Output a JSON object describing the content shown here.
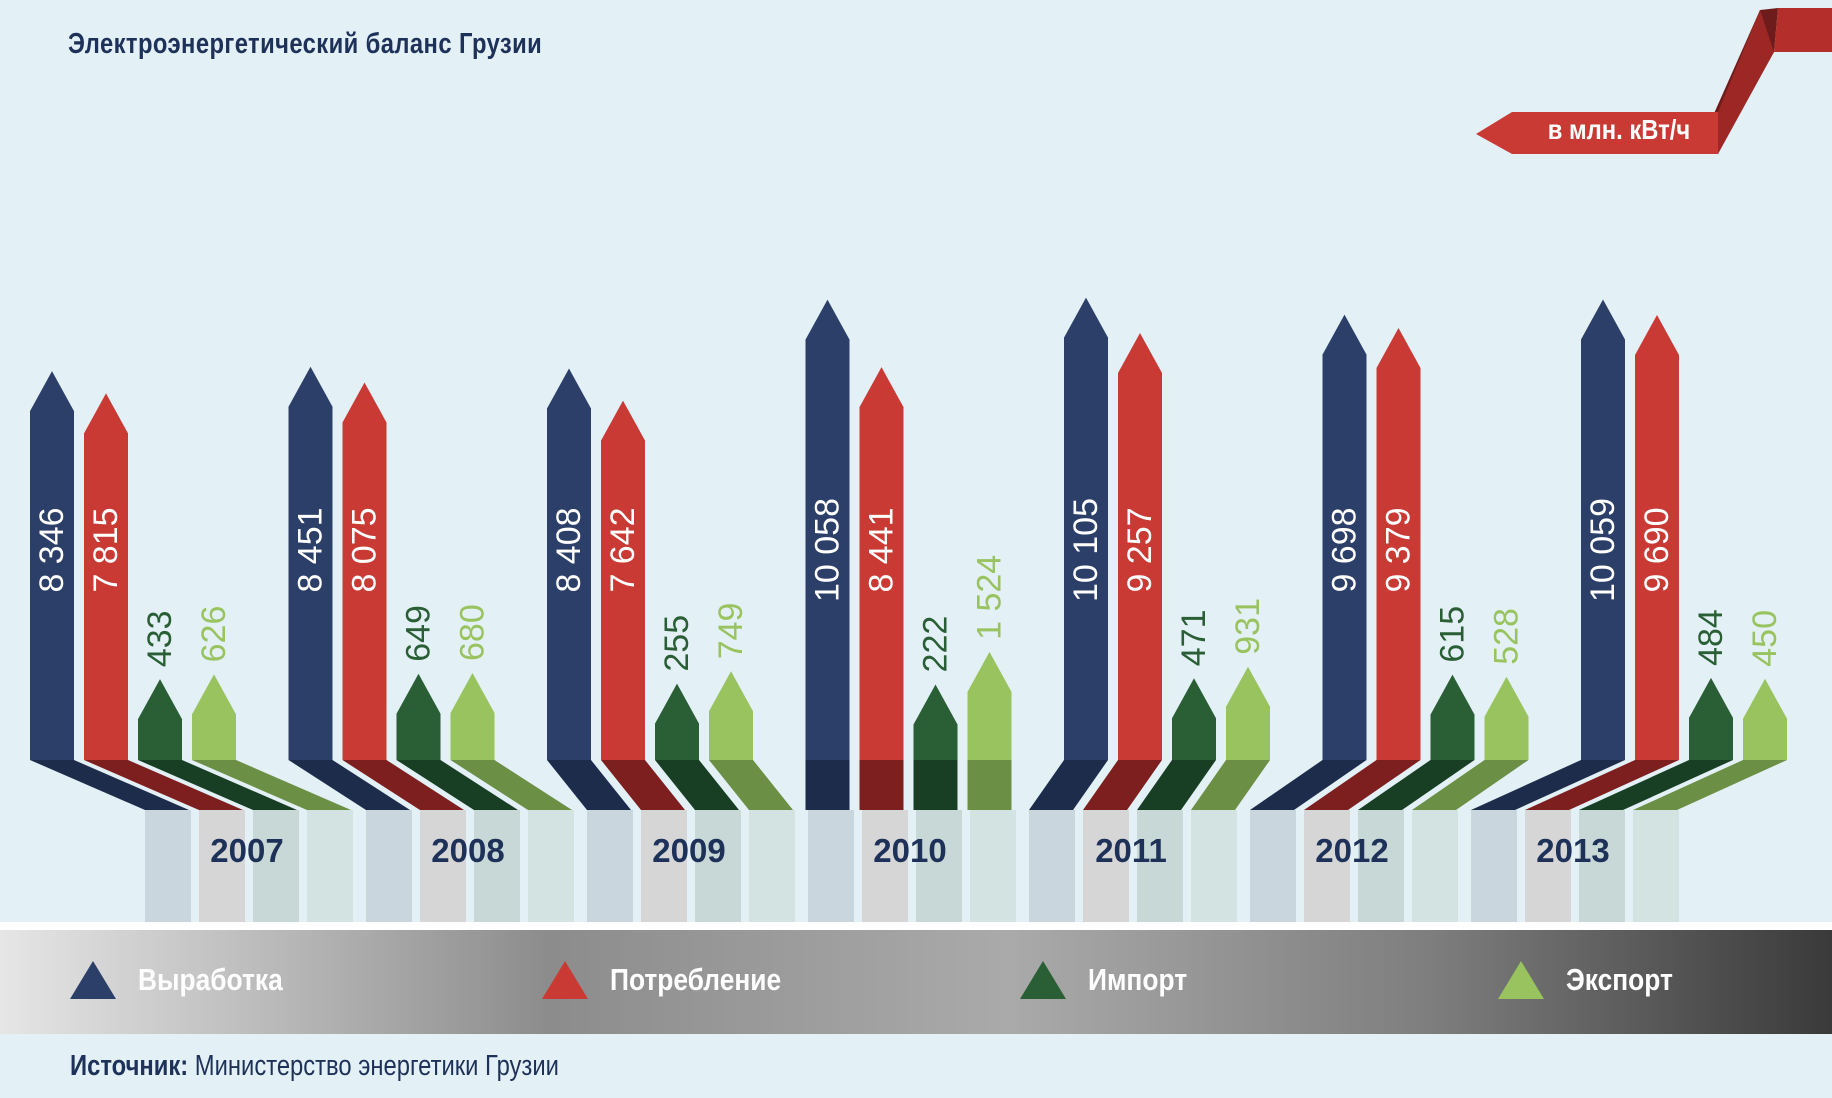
{
  "title": "Электроэнергетический баланс Грузии",
  "unit": "в млн. кВт/ч",
  "source_label": "Источник:",
  "source_text": "Министерство энергетики Грузии",
  "colors": {
    "Выработка": "#2c3f69",
    "Потребление": "#c93a35",
    "Импорт": "#2a5e35",
    "Экспорт": "#98c35f"
  },
  "legend": [
    {
      "label": "Выработка",
      "icon": "triangle-icon",
      "color": "#2c3f69"
    },
    {
      "label": "Потребление",
      "icon": "triangle-icon",
      "color": "#c93a35"
    },
    {
      "label": "Импорт",
      "icon": "triangle-icon",
      "color": "#2a5e35"
    },
    {
      "label": "Экспорт",
      "icon": "triangle-icon",
      "color": "#98c35f"
    }
  ],
  "chart_data": {
    "type": "bar",
    "title": "Электроэнергетический баланс Грузии",
    "categories": [
      "2007",
      "2008",
      "2009",
      "2010",
      "2011",
      "2012",
      "2013"
    ],
    "series": [
      {
        "name": "Выработка",
        "values": [
          8346,
          8451,
          8408,
          10058,
          10105,
          9698,
          10059
        ],
        "labels": [
          "8 346",
          "8 451",
          "8 408",
          "10 058",
          "10 105",
          "9 698",
          "10 059"
        ]
      },
      {
        "name": "Потребление",
        "values": [
          7815,
          8075,
          7642,
          8441,
          9257,
          9379,
          9690
        ],
        "labels": [
          "7 815",
          "8 075",
          "7 642",
          "8 441",
          "9 257",
          "9 379",
          "9 690"
        ]
      },
      {
        "name": "Импорт",
        "values": [
          433,
          649,
          255,
          222,
          471,
          615,
          484
        ],
        "labels": [
          "433",
          "649",
          "255",
          "222",
          "471",
          "615",
          "484"
        ]
      },
      {
        "name": "Экспорт",
        "values": [
          626,
          680,
          749,
          1524,
          931,
          528,
          450
        ],
        "labels": [
          "626",
          "680",
          "749",
          "1 524",
          "931",
          "528",
          "450"
        ]
      }
    ],
    "ylabel": "в млн. кВт/ч"
  }
}
